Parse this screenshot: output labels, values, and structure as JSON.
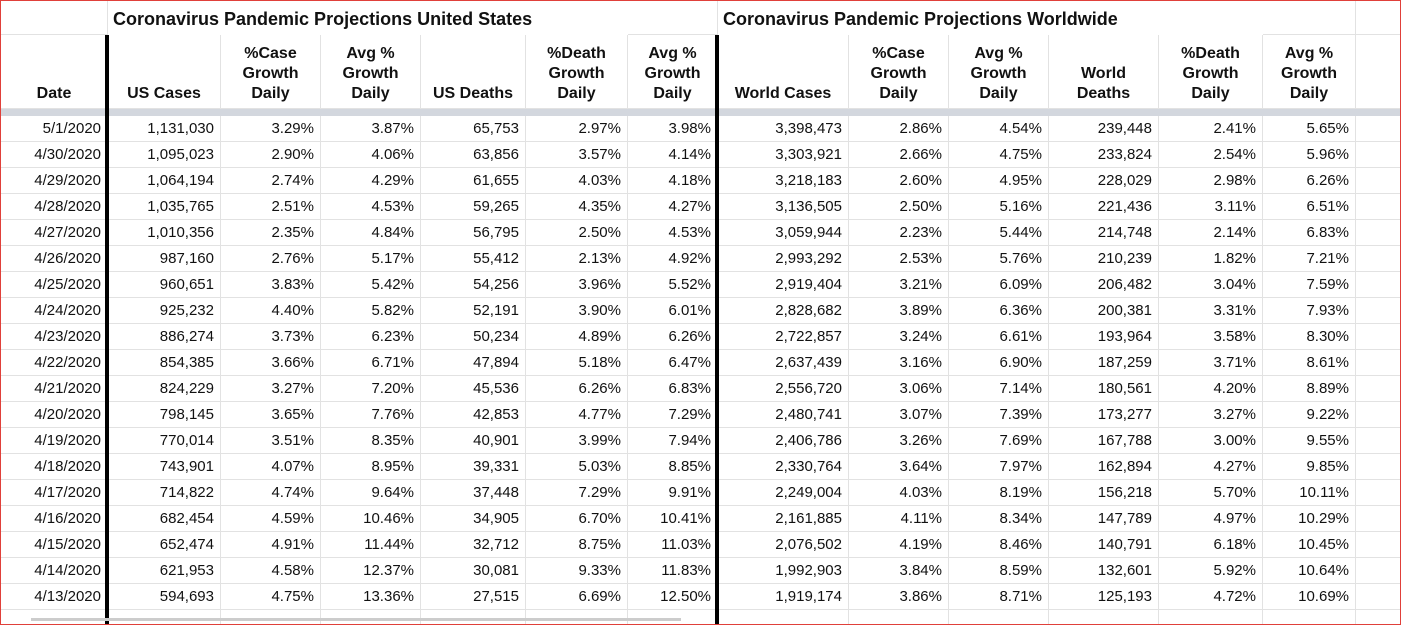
{
  "titles": [
    "Coronavirus Pandemic Projections United States",
    "Coronavirus Pandemic Projections Worldwide"
  ],
  "columns": [
    "Date",
    "US Cases",
    "%Case Growth Daily",
    "Avg % Growth Daily",
    "US Deaths",
    "%Death Growth Daily",
    "Avg % Growth Daily",
    "World Cases",
    "%Case Growth Daily",
    "Avg % Growth Daily",
    "World Deaths",
    "%Death Growth Daily",
    "Avg % Growth Daily"
  ],
  "rows": [
    [
      "5/1/2020",
      "1,131,030",
      "3.29%",
      "3.87%",
      "65,753",
      "2.97%",
      "3.98%",
      "3,398,473",
      "2.86%",
      "4.54%",
      "239,448",
      "2.41%",
      "5.65%"
    ],
    [
      "4/30/2020",
      "1,095,023",
      "2.90%",
      "4.06%",
      "63,856",
      "3.57%",
      "4.14%",
      "3,303,921",
      "2.66%",
      "4.75%",
      "233,824",
      "2.54%",
      "5.96%"
    ],
    [
      "4/29/2020",
      "1,064,194",
      "2.74%",
      "4.29%",
      "61,655",
      "4.03%",
      "4.18%",
      "3,218,183",
      "2.60%",
      "4.95%",
      "228,029",
      "2.98%",
      "6.26%"
    ],
    [
      "4/28/2020",
      "1,035,765",
      "2.51%",
      "4.53%",
      "59,265",
      "4.35%",
      "4.27%",
      "3,136,505",
      "2.50%",
      "5.16%",
      "221,436",
      "3.11%",
      "6.51%"
    ],
    [
      "4/27/2020",
      "1,010,356",
      "2.35%",
      "4.84%",
      "56,795",
      "2.50%",
      "4.53%",
      "3,059,944",
      "2.23%",
      "5.44%",
      "214,748",
      "2.14%",
      "6.83%"
    ],
    [
      "4/26/2020",
      "987,160",
      "2.76%",
      "5.17%",
      "55,412",
      "2.13%",
      "4.92%",
      "2,993,292",
      "2.53%",
      "5.76%",
      "210,239",
      "1.82%",
      "7.21%"
    ],
    [
      "4/25/2020",
      "960,651",
      "3.83%",
      "5.42%",
      "54,256",
      "3.96%",
      "5.52%",
      "2,919,404",
      "3.21%",
      "6.09%",
      "206,482",
      "3.04%",
      "7.59%"
    ],
    [
      "4/24/2020",
      "925,232",
      "4.40%",
      "5.82%",
      "52,191",
      "3.90%",
      "6.01%",
      "2,828,682",
      "3.89%",
      "6.36%",
      "200,381",
      "3.31%",
      "7.93%"
    ],
    [
      "4/23/2020",
      "886,274",
      "3.73%",
      "6.23%",
      "50,234",
      "4.89%",
      "6.26%",
      "2,722,857",
      "3.24%",
      "6.61%",
      "193,964",
      "3.58%",
      "8.30%"
    ],
    [
      "4/22/2020",
      "854,385",
      "3.66%",
      "6.71%",
      "47,894",
      "5.18%",
      "6.47%",
      "2,637,439",
      "3.16%",
      "6.90%",
      "187,259",
      "3.71%",
      "8.61%"
    ],
    [
      "4/21/2020",
      "824,229",
      "3.27%",
      "7.20%",
      "45,536",
      "6.26%",
      "6.83%",
      "2,556,720",
      "3.06%",
      "7.14%",
      "180,561",
      "4.20%",
      "8.89%"
    ],
    [
      "4/20/2020",
      "798,145",
      "3.65%",
      "7.76%",
      "42,853",
      "4.77%",
      "7.29%",
      "2,480,741",
      "3.07%",
      "7.39%",
      "173,277",
      "3.27%",
      "9.22%"
    ],
    [
      "4/19/2020",
      "770,014",
      "3.51%",
      "8.35%",
      "40,901",
      "3.99%",
      "7.94%",
      "2,406,786",
      "3.26%",
      "7.69%",
      "167,788",
      "3.00%",
      "9.55%"
    ],
    [
      "4/18/2020",
      "743,901",
      "4.07%",
      "8.95%",
      "39,331",
      "5.03%",
      "8.85%",
      "2,330,764",
      "3.64%",
      "7.97%",
      "162,894",
      "4.27%",
      "9.85%"
    ],
    [
      "4/17/2020",
      "714,822",
      "4.74%",
      "9.64%",
      "37,448",
      "7.29%",
      "9.91%",
      "2,249,004",
      "4.03%",
      "8.19%",
      "156,218",
      "5.70%",
      "10.11%"
    ],
    [
      "4/16/2020",
      "682,454",
      "4.59%",
      "10.46%",
      "34,905",
      "6.70%",
      "10.41%",
      "2,161,885",
      "4.11%",
      "8.34%",
      "147,789",
      "4.97%",
      "10.29%"
    ],
    [
      "4/15/2020",
      "652,474",
      "4.91%",
      "11.44%",
      "32,712",
      "8.75%",
      "11.03%",
      "2,076,502",
      "4.19%",
      "8.46%",
      "140,791",
      "6.18%",
      "10.45%"
    ],
    [
      "4/14/2020",
      "621,953",
      "4.58%",
      "12.37%",
      "30,081",
      "9.33%",
      "11.83%",
      "1,992,903",
      "3.84%",
      "8.59%",
      "132,601",
      "5.92%",
      "10.64%"
    ],
    [
      "4/13/2020",
      "594,693",
      "4.75%",
      "13.36%",
      "27,515",
      "6.69%",
      "12.50%",
      "1,919,174",
      "3.86%",
      "8.71%",
      "125,193",
      "4.72%",
      "10.69%"
    ]
  ]
}
